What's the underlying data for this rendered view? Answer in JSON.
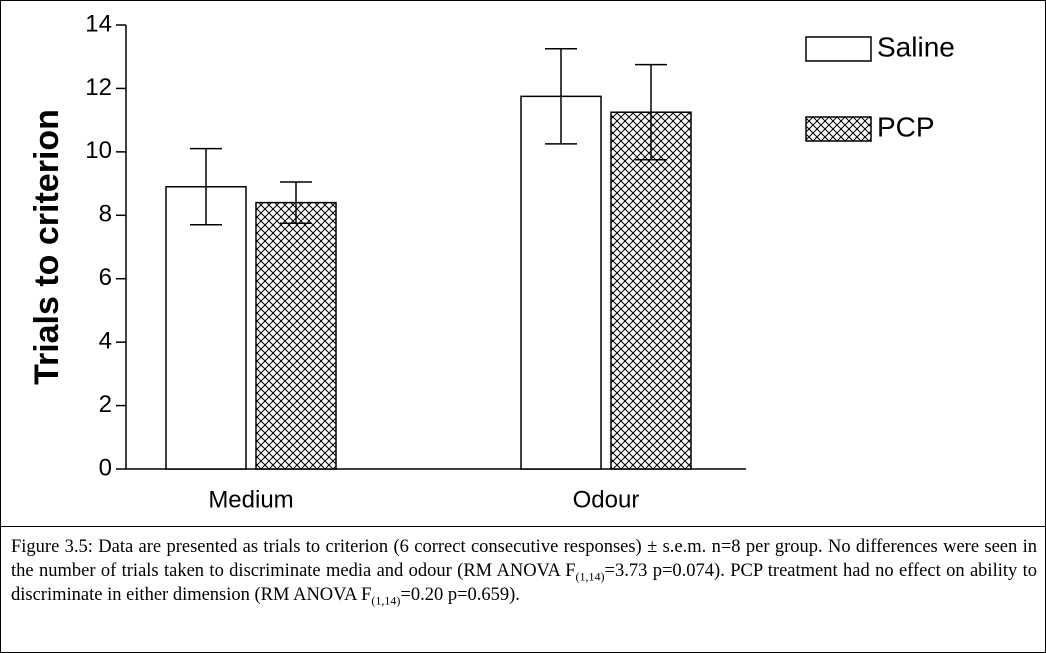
{
  "chart_data": {
    "type": "bar",
    "ylabel": "Trials to criterion",
    "categories": [
      "Medium",
      "Odour"
    ],
    "series": [
      {
        "name": "Saline",
        "color": "#ffffff",
        "values": [
          8.9,
          11.75
        ],
        "errors": [
          1.2,
          1.5
        ]
      },
      {
        "name": "PCP",
        "color": "#ffffff",
        "hatch": "crosshatch",
        "values": [
          8.4,
          11.25
        ],
        "errors": [
          0.65,
          1.5
        ]
      }
    ],
    "ylim": [
      0,
      14
    ],
    "yticks": [
      0,
      2,
      4,
      6,
      8,
      10,
      12,
      14
    ],
    "grid": false,
    "legend": "top-right"
  },
  "caption": [
    "Figure 3.5: Data are presented as trials to criterion (6 correct consecutive responses) ± s.e.m. n=8 per group. No differences were seen in the number of trials taken to discriminate media and odour (RM ANOVA F",
    "(1,14)",
    "=3.73 p=0.074). PCP treatment had no effect on ability to discriminate in either dimension  (RM ANOVA F",
    "(1,14)",
    "=0.20 p=0.659)."
  ]
}
